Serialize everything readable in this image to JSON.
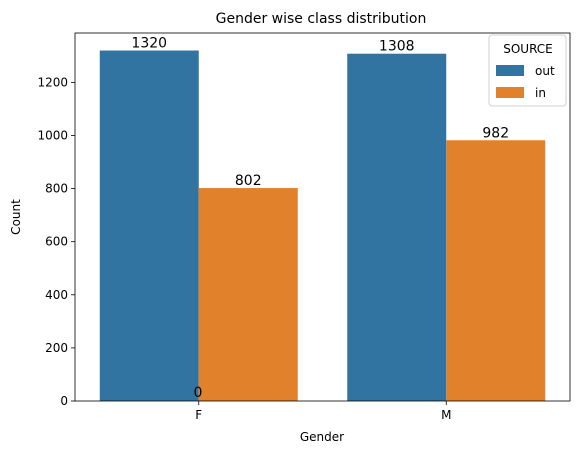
{
  "chart_data": {
    "type": "bar",
    "title": "Gender wise class distribution",
    "xlabel": "Gender",
    "ylabel": "Count",
    "categories": [
      "F",
      "M"
    ],
    "series": [
      {
        "name": "out",
        "color": "#3274a1",
        "values": [
          1320,
          1308
        ]
      },
      {
        "name": "in",
        "color": "#e1812c",
        "values": [
          802,
          982
        ]
      }
    ],
    "ylim": [
      0,
      1386
    ],
    "yticks": [
      0,
      200,
      400,
      600,
      800,
      1000,
      1200
    ],
    "extra_label": "0",
    "legend": {
      "title": "SOURCE",
      "placement": "top-right"
    },
    "grid": false
  }
}
